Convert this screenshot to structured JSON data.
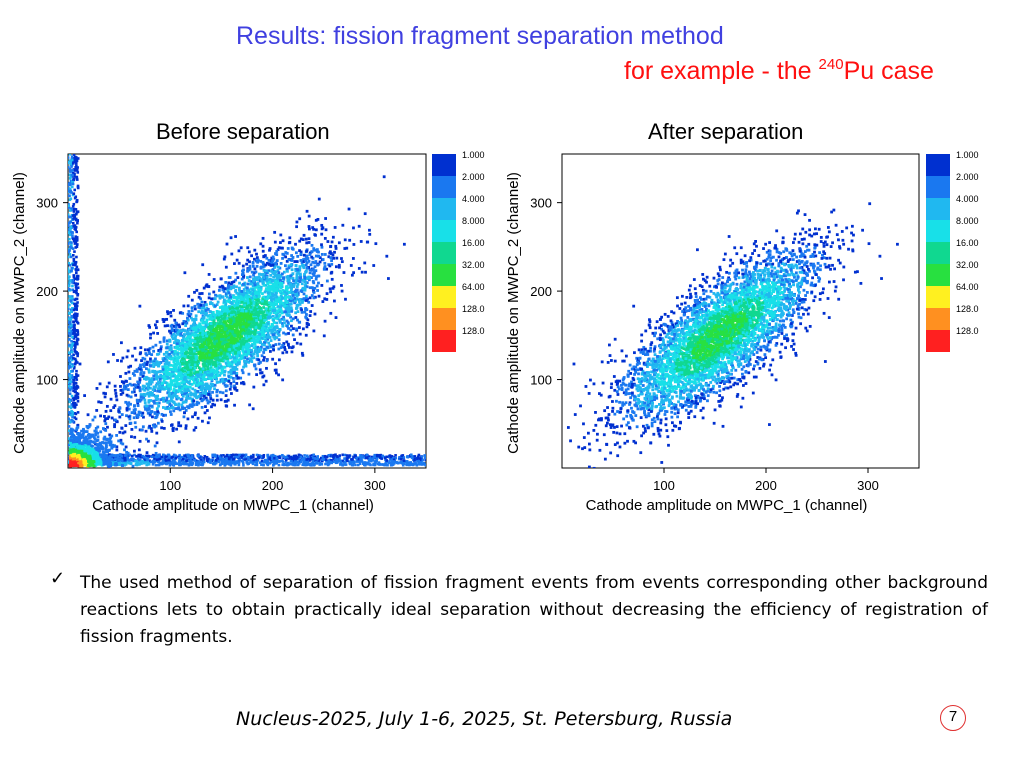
{
  "slide": {
    "title": "Results: fission fragment separation method",
    "subtitle_prefix": "for example - the ",
    "subtitle_sup": "240",
    "subtitle_suffix": "Pu case",
    "bullet_mark": "✓",
    "bullet_text": "The used method of separation of fission fragment events from events corresponding other background reactions lets to obtain practically ideal separation without decreasing the efficiency of registration of fission fragments.",
    "footer": "Nucleus-2025, July 1-6, 2025, St. Petersburg, Russia",
    "page_number": "7"
  },
  "chart_data": [
    {
      "type": "heatmap",
      "title": "Before separation",
      "xlabel": "Cathode amplitude on MWPC_1 (channel)",
      "ylabel": "Cathode amplitude on MWPC_2 (channel)",
      "xlim": [
        0,
        350
      ],
      "ylim": [
        0,
        355
      ],
      "xticks": [
        100,
        200,
        300
      ],
      "yticks": [
        100,
        200,
        300
      ],
      "color_scale": [
        "1.000",
        "2.000",
        "4.000",
        "8.000",
        "16.00",
        "32.00",
        "64.00",
        "128.0",
        "128.0"
      ],
      "color_scale_colors": [
        "#0030d0",
        "#1a78f0",
        "#20b8f0",
        "#18e0e8",
        "#10d890",
        "#28e040",
        "#fff020",
        "#ff9020",
        "#ff2020"
      ],
      "components": [
        {
          "name": "fission fragments",
          "center": [
            142,
            135
          ],
          "spread": 45,
          "max_count": 32
        },
        {
          "name": "background band along x axis",
          "x_range": [
            0,
            350
          ],
          "y_range": [
            3,
            15
          ],
          "max_count": 128
        },
        {
          "name": "background band along y axis",
          "x_range": [
            0,
            10
          ],
          "y_range": [
            10,
            355
          ],
          "max_count": 8
        },
        {
          "name": "low-amplitude cluster",
          "x_range": [
            0,
            50
          ],
          "y_range": [
            0,
            50
          ],
          "max_count": 128
        }
      ]
    },
    {
      "type": "heatmap",
      "title": "After separation",
      "xlabel": "Cathode amplitude on MWPC_1 (channel)",
      "ylabel": "Cathode amplitude on MWPC_2 (channel)",
      "xlim": [
        0,
        350
      ],
      "ylim": [
        0,
        355
      ],
      "xticks": [
        100,
        200,
        300
      ],
      "yticks": [
        100,
        200,
        300
      ],
      "color_scale": [
        "1.000",
        "2.000",
        "4.000",
        "8.000",
        "16.00",
        "32.00",
        "64.00",
        "128.0",
        "128.0"
      ],
      "color_scale_colors": [
        "#0030d0",
        "#1a78f0",
        "#20b8f0",
        "#18e0e8",
        "#10d890",
        "#28e040",
        "#fff020",
        "#ff9020",
        "#ff2020"
      ],
      "components": [
        {
          "name": "fission fragments",
          "center": [
            142,
            135
          ],
          "spread": 45,
          "max_count": 32
        }
      ]
    }
  ]
}
